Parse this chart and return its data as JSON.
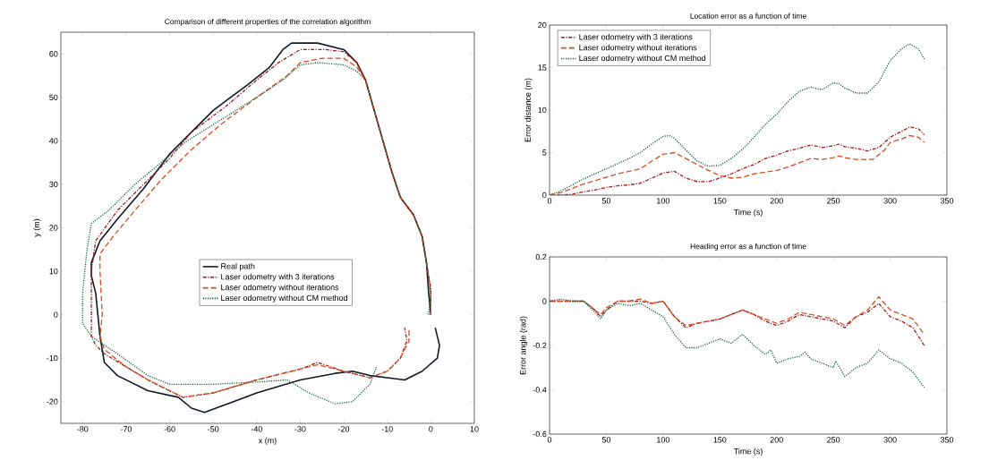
{
  "chart_data": [
    {
      "type": "line",
      "title": "Comparison of different properties of the correlation algorithm",
      "xlabel": "x (m)",
      "ylabel": "y (m)",
      "xlim": [
        -85,
        10
      ],
      "ylim": [
        -25,
        65
      ],
      "xticks": [
        -80,
        -70,
        -60,
        -50,
        -40,
        -30,
        -20,
        -10,
        0,
        10
      ],
      "yticks": [
        -20,
        -10,
        0,
        10,
        20,
        30,
        40,
        50,
        60
      ],
      "legend": "center",
      "series": [
        {
          "name": "Real path",
          "color": "#101828",
          "line_style": "solid",
          "x": [
            0,
            -0.5,
            -1,
            -2,
            -4,
            -7,
            -9,
            -11,
            -13,
            -15,
            -17,
            -20,
            -26,
            -32,
            -34,
            -37,
            -42,
            -50,
            -55,
            -60,
            -66,
            -72,
            -76,
            -78,
            -78,
            -77,
            -76.5,
            -76,
            -75,
            -72,
            -65,
            -58,
            -55,
            -52,
            -48,
            -40,
            -30,
            -22,
            -18,
            -14,
            -10,
            -6,
            -2,
            1.5,
            2,
            1
          ],
          "values": [
            0,
            5,
            12,
            18,
            23,
            27,
            33,
            40,
            47,
            54,
            58,
            61,
            62.5,
            62.5,
            61,
            57,
            53,
            47,
            42,
            37,
            29,
            22,
            17,
            12,
            9,
            5,
            0,
            -5,
            -11,
            -14,
            -17.5,
            -19,
            -21.5,
            -22.5,
            -21,
            -18,
            -15,
            -13.5,
            -13,
            -14,
            -14.5,
            -15,
            -13,
            -10,
            -7,
            -3
          ]
        },
        {
          "name": "Laser odometry with 3 iterations",
          "color": "#a01818",
          "line_style": "dashdot",
          "x": [
            0,
            0,
            -1,
            -2,
            -4,
            -7,
            -9,
            -11,
            -13,
            -15,
            -17,
            -20,
            -24,
            -30,
            -35,
            -40,
            -47,
            -55,
            -60,
            -66,
            -72,
            -77,
            -78,
            -78,
            -77,
            -75,
            -70,
            -65,
            -57,
            -50,
            -40,
            -30,
            -26,
            -20,
            -14,
            -10,
            -7,
            -5.5,
            -6
          ],
          "values": [
            3,
            6,
            12,
            18,
            23,
            27,
            33,
            40,
            47,
            54,
            58,
            60.5,
            61,
            61,
            58,
            54,
            48,
            42,
            36,
            30,
            24,
            17,
            10,
            -5,
            -7,
            -9,
            -12,
            -15,
            -19,
            -18,
            -15,
            -12.5,
            -11,
            -13,
            -14.5,
            -13,
            -10,
            -6,
            -3
          ]
        },
        {
          "name": "Laser odometry without iterations",
          "color": "#d84a20",
          "line_style": "dashed",
          "x": [
            0,
            0,
            -1,
            -2,
            -4,
            -7,
            -9,
            -11,
            -13,
            -15,
            -17,
            -20,
            -25,
            -30,
            -33,
            -40,
            -48,
            -55,
            -62,
            -68,
            -73,
            -76,
            -76,
            -75.5,
            -76,
            -75,
            -70,
            -65,
            -57,
            -50,
            -40,
            -30,
            -26,
            -20,
            -14,
            -10,
            -7,
            -5,
            -5
          ],
          "values": [
            0,
            5,
            12,
            18,
            23,
            27,
            33,
            40,
            47,
            54,
            57,
            59,
            59,
            58,
            55,
            50,
            44,
            38,
            31,
            24,
            18,
            14,
            10,
            0,
            -5,
            -8,
            -12,
            -15,
            -19,
            -18,
            -15,
            -12.5,
            -11.5,
            -13,
            -14.5,
            -13,
            -10,
            -6,
            -3
          ]
        },
        {
          "name": "Laser odometry without CM method",
          "color": "#1a5a3a",
          "line_style": "dotted",
          "x": [
            -0.5,
            0,
            -1,
            -2,
            -4,
            -7,
            -9,
            -11,
            -13,
            -15,
            -17,
            -20,
            -26,
            -30,
            -34,
            -40,
            -48,
            -56,
            -62,
            -68,
            -74,
            -78,
            -79,
            -80,
            -80,
            -78,
            -72,
            -65,
            -60,
            -50,
            -40,
            -33,
            -28,
            -22,
            -18,
            -14,
            -12.5
          ],
          "values": [
            0,
            5,
            12,
            18,
            23,
            27,
            33,
            40,
            47,
            54,
            56,
            57.5,
            58,
            57.5,
            54,
            50,
            45,
            40,
            35,
            30,
            24,
            21,
            15,
            5,
            -2,
            -5,
            -9,
            -14,
            -16,
            -16,
            -15.5,
            -15,
            -18,
            -20.5,
            -20,
            -16,
            -12
          ]
        }
      ]
    },
    {
      "type": "line",
      "title": "Location error as a function of time",
      "xlabel": "Time (s)",
      "ylabel": "Error distance (m)",
      "xlim": [
        0,
        350
      ],
      "ylim": [
        0,
        20
      ],
      "xticks": [
        0,
        50,
        100,
        150,
        200,
        250,
        300,
        350
      ],
      "yticks": [
        0,
        5,
        10,
        15,
        20
      ],
      "legend": "top left",
      "series": [
        {
          "name": "Laser odometry with 3 iterations",
          "color": "#a01818",
          "line_style": "dashdot",
          "x": [
            0,
            10,
            20,
            30,
            40,
            50,
            60,
            70,
            80,
            90,
            100,
            110,
            120,
            130,
            140,
            150,
            160,
            170,
            180,
            190,
            200,
            210,
            220,
            230,
            240,
            250,
            255,
            260,
            270,
            280,
            290,
            300,
            310,
            317,
            325,
            330
          ],
          "values": [
            0,
            0,
            0.1,
            0.4,
            0.6,
            0.9,
            1.1,
            1.2,
            1.4,
            2.0,
            2.6,
            2.8,
            2.0,
            1.6,
            1.6,
            2.0,
            2.5,
            3.1,
            3.6,
            4.3,
            4.7,
            5.2,
            5.5,
            5.9,
            5.6,
            5.8,
            6.0,
            5.7,
            5.5,
            5.2,
            5.6,
            6.8,
            7.5,
            8.0,
            7.8,
            7.1
          ]
        },
        {
          "name": "Laser odometry without iterations",
          "color": "#d84a20",
          "line_style": "dashed",
          "x": [
            0,
            10,
            20,
            30,
            40,
            50,
            60,
            70,
            80,
            90,
            100,
            110,
            120,
            130,
            140,
            150,
            160,
            170,
            180,
            190,
            200,
            210,
            220,
            230,
            240,
            250,
            255,
            260,
            270,
            285,
            295,
            300,
            310,
            317,
            325,
            330
          ],
          "values": [
            0,
            0.3,
            0.8,
            1.3,
            1.7,
            2.1,
            2.5,
            2.8,
            3.1,
            4.0,
            4.8,
            5.0,
            4.3,
            3.6,
            2.9,
            2.3,
            2.0,
            2.1,
            2.5,
            2.7,
            2.9,
            3.3,
            3.8,
            4.3,
            4.2,
            4.4,
            4.6,
            4.4,
            4.2,
            4.2,
            5.3,
            6.2,
            6.6,
            7.0,
            6.8,
            6.2
          ]
        },
        {
          "name": "Laser odometry without CM method",
          "color": "#1a5a3a",
          "line_style": "dotted",
          "x": [
            0,
            10,
            20,
            30,
            40,
            50,
            60,
            70,
            80,
            90,
            100,
            105,
            110,
            120,
            130,
            140,
            150,
            160,
            170,
            180,
            190,
            200,
            210,
            220,
            230,
            240,
            250,
            255,
            260,
            270,
            280,
            290,
            300,
            310,
            317,
            325,
            330
          ],
          "values": [
            0,
            0.5,
            1.2,
            1.9,
            2.5,
            3.1,
            3.7,
            4.3,
            5.0,
            6.0,
            6.9,
            7.0,
            6.7,
            5.3,
            4.0,
            3.4,
            3.5,
            4.3,
            5.4,
            6.8,
            8.3,
            9.5,
            11,
            12.2,
            12.7,
            12.4,
            13.2,
            13.1,
            12.6,
            12.0,
            12.0,
            13.3,
            15.8,
            17.2,
            17.8,
            17.2,
            16.0
          ]
        }
      ]
    },
    {
      "type": "line",
      "title": "Heading error as a function of time",
      "xlabel": "Time (s)",
      "ylabel": "Error angle (rad)",
      "xlim": [
        0,
        350
      ],
      "ylim": [
        -0.6,
        0.2
      ],
      "xticks": [
        0,
        50,
        100,
        150,
        200,
        250,
        300,
        350
      ],
      "yticks": [
        -0.6,
        -0.4,
        -0.2,
        0,
        0.2
      ],
      "series": [
        {
          "color": "#a01818",
          "line_style": "dashdot",
          "x": [
            0,
            10,
            20,
            30,
            40,
            45,
            50,
            60,
            70,
            80,
            90,
            100,
            110,
            120,
            130,
            140,
            150,
            160,
            170,
            180,
            190,
            200,
            210,
            220,
            230,
            240,
            250,
            260,
            270,
            280,
            290,
            300,
            310,
            320,
            330
          ],
          "values": [
            0,
            0,
            0,
            0,
            -0.04,
            -0.07,
            -0.04,
            0,
            0,
            0,
            -0.01,
            0,
            -0.07,
            -0.12,
            -0.1,
            -0.09,
            -0.08,
            -0.06,
            -0.04,
            -0.06,
            -0.09,
            -0.11,
            -0.09,
            -0.06,
            -0.07,
            -0.08,
            -0.09,
            -0.12,
            -0.07,
            -0.05,
            -0.01,
            -0.07,
            -0.09,
            -0.12,
            -0.2
          ]
        },
        {
          "color": "#d84a20",
          "line_style": "dashed",
          "x": [
            0,
            10,
            20,
            30,
            40,
            45,
            50,
            60,
            70,
            80,
            90,
            100,
            110,
            120,
            130,
            140,
            150,
            160,
            170,
            180,
            190,
            200,
            210,
            220,
            230,
            240,
            250,
            260,
            270,
            280,
            290,
            300,
            310,
            320,
            330
          ],
          "values": [
            0,
            0,
            0,
            0,
            -0.04,
            -0.06,
            -0.03,
            0,
            0,
            0.01,
            -0.01,
            0,
            -0.07,
            -0.11,
            -0.1,
            -0.09,
            -0.08,
            -0.06,
            -0.04,
            -0.06,
            -0.08,
            -0.1,
            -0.08,
            -0.05,
            -0.06,
            -0.07,
            -0.08,
            -0.11,
            -0.07,
            -0.04,
            0.02,
            -0.04,
            -0.06,
            -0.08,
            -0.15
          ]
        },
        {
          "color": "#1a5a3a",
          "line_style": "dotted",
          "x": [
            0,
            10,
            20,
            30,
            40,
            45,
            50,
            60,
            70,
            80,
            90,
            100,
            110,
            120,
            130,
            140,
            150,
            160,
            170,
            180,
            190,
            195,
            200,
            210,
            220,
            225,
            230,
            240,
            250,
            252,
            260,
            270,
            280,
            290,
            300,
            310,
            320,
            330
          ],
          "values": [
            0,
            0.01,
            0,
            0,
            -0.05,
            -0.08,
            -0.04,
            -0.01,
            -0.02,
            -0.01,
            -0.04,
            -0.07,
            -0.15,
            -0.21,
            -0.21,
            -0.19,
            -0.17,
            -0.19,
            -0.15,
            -0.2,
            -0.24,
            -0.22,
            -0.28,
            -0.26,
            -0.25,
            -0.23,
            -0.26,
            -0.28,
            -0.3,
            -0.27,
            -0.34,
            -0.3,
            -0.28,
            -0.22,
            -0.26,
            -0.28,
            -0.32,
            -0.39
          ]
        }
      ]
    }
  ]
}
